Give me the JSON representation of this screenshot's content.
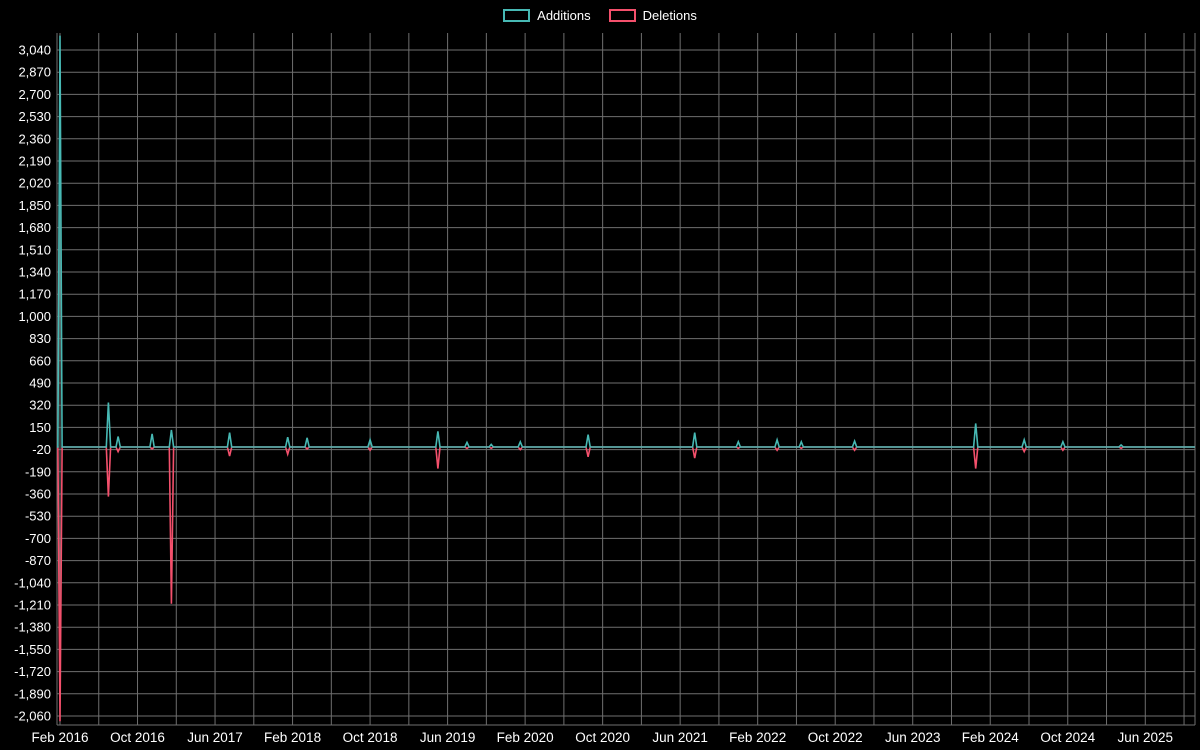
{
  "chart_data": {
    "type": "line",
    "legend_position": "top-center",
    "background_color": "#000000",
    "grid": true,
    "grid_color": "#6f6f6f",
    "text_color": "#ffffff",
    "legend": [
      {
        "name": "Additions",
        "key": "additions",
        "color": "#47b9b4"
      },
      {
        "name": "Deletions",
        "key": "deletions",
        "color": "#f4506c"
      }
    ],
    "x_axis": {
      "tick_labels": [
        "Feb 2016",
        "Oct 2016",
        "Jun 2017",
        "Feb 2018",
        "Oct 2018",
        "Jun 2019",
        "Feb 2020",
        "Oct 2020",
        "Jun 2021",
        "Feb 2022",
        "Oct 2022",
        "Jun 2023",
        "Feb 2024",
        "Oct 2024",
        "Jun 2025"
      ],
      "months_per_label": 8,
      "gridline_every_months": 4,
      "total_months": 117
    },
    "y_axis": {
      "max": 3040,
      "min": -2060,
      "step": 170,
      "tick_labels": [
        "3,040",
        "2,870",
        "2,700",
        "2,530",
        "2,360",
        "2,190",
        "2,020",
        "1,850",
        "1,680",
        "1,510",
        "1,340",
        "1,170",
        "1,000",
        "830",
        "660",
        "490",
        "320",
        "150",
        "-20",
        "-190",
        "-360",
        "-530",
        "-700",
        "-870",
        "-1,040",
        "-1,210",
        "-1,380",
        "-1,550",
        "-1,720",
        "-1,890",
        "-2,060"
      ]
    },
    "points": [
      {
        "month": 0,
        "date": "Feb 2016",
        "additions": 3150,
        "deletions": -2100
      },
      {
        "month": 5,
        "date": "Jul 2016",
        "additions": 340,
        "deletions": -380
      },
      {
        "month": 6,
        "date": "Aug 2016",
        "additions": 80,
        "deletions": -35
      },
      {
        "month": 9.5,
        "date": "Nov 2016",
        "additions": 100,
        "deletions": -15
      },
      {
        "month": 11.5,
        "date": "Jan 2017",
        "additions": 130,
        "deletions": -1200
      },
      {
        "month": 17.5,
        "date": "Jul 2017",
        "additions": 110,
        "deletions": -70
      },
      {
        "month": 23.5,
        "date": "Jan 2018",
        "additions": 75,
        "deletions": -55
      },
      {
        "month": 25.5,
        "date": "Mar 2018",
        "additions": 70,
        "deletions": -15
      },
      {
        "month": 32,
        "date": "Oct 2018",
        "additions": 55,
        "deletions": -25
      },
      {
        "month": 39,
        "date": "May 2019",
        "additions": 120,
        "deletions": -165
      },
      {
        "month": 42,
        "date": "Aug 2019",
        "additions": 35,
        "deletions": -10
      },
      {
        "month": 44.5,
        "date": "Oct 2019",
        "additions": 20,
        "deletions": -10
      },
      {
        "month": 47.5,
        "date": "Jan 2020",
        "additions": 40,
        "deletions": -20
      },
      {
        "month": 54.5,
        "date": "Aug 2020",
        "additions": 95,
        "deletions": -75
      },
      {
        "month": 65.5,
        "date": "Jul 2021",
        "additions": 110,
        "deletions": -85
      },
      {
        "month": 70,
        "date": "Dec 2021",
        "additions": 40,
        "deletions": -10
      },
      {
        "month": 74,
        "date": "Apr 2022",
        "additions": 55,
        "deletions": -25
      },
      {
        "month": 76.5,
        "date": "Jun 2022",
        "additions": 40,
        "deletions": -10
      },
      {
        "month": 82,
        "date": "Dec 2022",
        "additions": 45,
        "deletions": -25
      },
      {
        "month": 94.5,
        "date": "Dec 2023",
        "additions": 180,
        "deletions": -165
      },
      {
        "month": 99.5,
        "date": "May 2024",
        "additions": 55,
        "deletions": -35
      },
      {
        "month": 103.5,
        "date": "Sep 2024",
        "additions": 40,
        "deletions": -25
      },
      {
        "month": 109.5,
        "date": "Mar 2025",
        "additions": 15,
        "deletions": -10
      }
    ]
  }
}
